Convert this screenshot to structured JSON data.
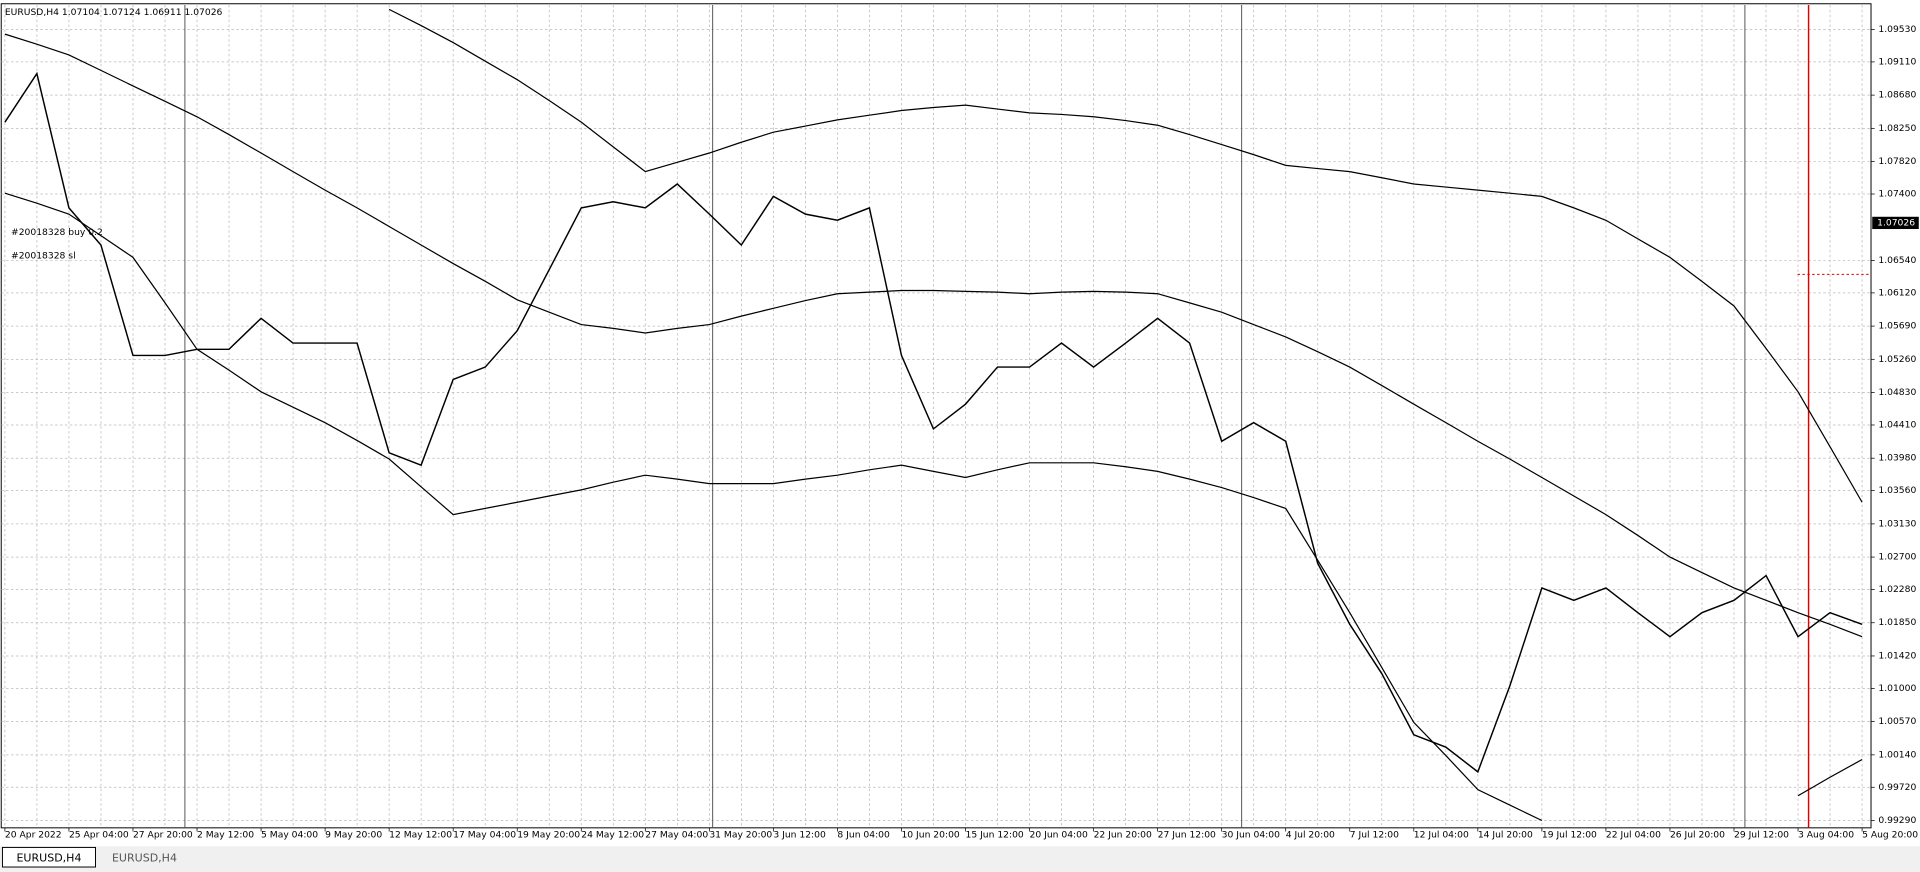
{
  "chart_data": {
    "type": "line",
    "title": "EURUSD,H4 1.07104 1.07124 1.06911 1.07026",
    "annotations": [
      "#20018328 buy 0.2",
      "#20018328 sl"
    ],
    "categories": [
      "20 Apr 2022",
      null,
      "25 Apr 04:00",
      null,
      "27 Apr 20:00",
      null,
      "2 May 12:00",
      null,
      "5 May 04:00",
      null,
      "9 May 20:00",
      null,
      "12 May 12:00",
      null,
      "17 May 04:00",
      null,
      "19 May 20:00",
      null,
      "24 May 12:00",
      null,
      "27 May 04:00",
      null,
      "31 May 20:00",
      null,
      "3 Jun 12:00",
      null,
      "8 Jun 04:00",
      null,
      "10 Jun 20:00",
      null,
      "15 Jun 12:00",
      null,
      "20 Jun 04:00",
      null,
      "22 Jun 20:00",
      null,
      "27 Jun 12:00",
      null,
      "30 Jun 04:00",
      null,
      "4 Jul 20:00",
      null,
      "7 Jul 12:00",
      null,
      "12 Jul 04:00",
      null,
      "14 Jul 20:00",
      null,
      "19 Jul 12:00",
      null,
      "22 Jul 04:00",
      null,
      "26 Jul 20:00",
      null,
      "29 Jul 12:00",
      null,
      "3 Aug 04:00",
      null,
      "5 Aug 20:00"
    ],
    "series": [
      {
        "color": "#000000",
        "values": [
          1.0833,
          1.0896,
          1.0722,
          1.0674,
          1.0531,
          1.0531,
          1.0539,
          1.0539,
          1.0579,
          1.0547,
          1.0547,
          1.0547,
          1.0405,
          1.0389,
          1.05,
          1.0516,
          1.0563,
          1.0642,
          1.0722,
          1.073,
          1.0722,
          1.0753,
          1.0714,
          1.0674,
          1.0737,
          1.0714,
          1.0706,
          1.0722,
          1.0531,
          1.0436,
          1.0468,
          1.0516,
          1.0516,
          1.0547,
          1.0516,
          1.0547,
          1.0579,
          1.0547,
          1.042,
          1.0444,
          1.042,
          1.0262,
          1.0183,
          1.0119,
          1.004,
          1.0024,
          0.9992,
          1.0103,
          1.023,
          1.0214,
          1.023,
          1.0198,
          1.0167,
          1.0198,
          1.0214,
          1.0246,
          1.0167,
          1.0198,
          1.0183
        ]
      },
      {
        "color": "#000000",
        "values": [
          null,
          null,
          null,
          null,
          null,
          null,
          null,
          null,
          null,
          null,
          null,
          null,
          1.0979,
          1.0958,
          1.0936,
          1.0912,
          1.0888,
          1.0861,
          1.0833,
          1.0801,
          1.0769,
          1.0781,
          1.0793,
          1.0807,
          1.082,
          1.0828,
          1.0836,
          1.0842,
          1.0848,
          1.0852,
          1.0855,
          1.085,
          1.0845,
          1.0843,
          1.084,
          1.0835,
          1.0829,
          1.0817,
          1.0804,
          1.0791,
          1.0777,
          1.0773,
          1.0769,
          1.0761,
          1.0753,
          1.0749,
          1.0745,
          1.0741,
          1.0737,
          1.0722,
          1.0706,
          1.0682,
          1.0658,
          1.0627,
          1.0595,
          1.054,
          1.0484,
          1.0413,
          1.0341
        ]
      },
      {
        "color": "#000000",
        "values": [
          1.0947,
          1.0934,
          1.092,
          1.09,
          1.088,
          1.086,
          1.084,
          1.0817,
          1.0793,
          1.0769,
          1.0745,
          1.0722,
          1.0698,
          1.0674,
          1.065,
          1.0627,
          1.0603,
          1.0587,
          1.0571,
          1.0566,
          1.056,
          1.0566,
          1.0571,
          1.0582,
          1.0592,
          1.0602,
          1.0611,
          1.0613,
          1.0615,
          1.0615,
          1.0614,
          1.0613,
          1.0611,
          1.0613,
          1.0614,
          1.0613,
          1.0611,
          1.0599,
          1.0587,
          1.0571,
          1.0555,
          1.0536,
          1.0516,
          1.0492,
          1.0468,
          1.0444,
          1.042,
          1.0397,
          1.0373,
          1.0349,
          1.0325,
          1.0298,
          1.027,
          1.025,
          1.023,
          1.0214,
          1.0198,
          1.0183,
          1.0167
        ]
      },
      {
        "color": "#000000",
        "values": [
          1.0741,
          1.0728,
          1.0714,
          1.0686,
          1.0658,
          1.0599,
          1.0539,
          1.0512,
          1.0484,
          1.0464,
          1.0444,
          1.0421,
          1.0397,
          1.0361,
          1.0325,
          1.0333,
          1.0341,
          1.0349,
          1.0357,
          1.0367,
          1.0376,
          1.0371,
          1.0365,
          1.0365,
          1.0365,
          1.0371,
          1.0376,
          1.0383,
          1.0389,
          1.0381,
          1.0373,
          1.0383,
          1.0392,
          1.0392,
          1.0392,
          1.0387,
          1.0381,
          1.0371,
          1.036,
          1.0347,
          1.0333,
          1.0266,
          1.0198,
          1.0127,
          1.0056,
          1.0013,
          0.9969,
          0.9949,
          0.9929,
          null,
          null,
          null,
          null,
          null,
          null,
          null,
          0.9961,
          0.9985,
          1.0008
        ]
      }
    ],
    "ylim": [
      0.99195,
      1.09847
    ],
    "yticks": [
      {
        "value": 1.0953,
        "label": "1.09530"
      },
      {
        "value": 1.0911,
        "label": "1.09110"
      },
      {
        "value": 1.0868,
        "label": "1.08680"
      },
      {
        "value": 1.0825,
        "label": "1.08250"
      },
      {
        "value": 1.0782,
        "label": "1.07820"
      },
      {
        "value": 1.074,
        "label": "1.07400"
      },
      {
        "value": 1.0654,
        "label": "1.06540"
      },
      {
        "value": 1.0612,
        "label": "1.06120"
      },
      {
        "value": 1.0569,
        "label": "1.05690"
      },
      {
        "value": 1.0526,
        "label": "1.05260"
      },
      {
        "value": 1.0483,
        "label": "1.04830"
      },
      {
        "value": 1.0441,
        "label": "1.04410"
      },
      {
        "value": 1.0398,
        "label": "1.03980"
      },
      {
        "value": 1.0356,
        "label": "1.03560"
      },
      {
        "value": 1.0313,
        "label": "1.03130"
      },
      {
        "value": 1.027,
        "label": "1.02700"
      },
      {
        "value": 1.0228,
        "label": "1.02280"
      },
      {
        "value": 1.0185,
        "label": "1.01850"
      },
      {
        "value": 1.0142,
        "label": "1.01420"
      },
      {
        "value": 1.01,
        "label": "1.01000"
      },
      {
        "value": 1.0057,
        "label": "1.00570"
      },
      {
        "value": 1.0014,
        "label": "1.00140"
      },
      {
        "value": 0.9972,
        "label": "0.99720"
      },
      {
        "value": 0.9929,
        "label": "0.99290"
      }
    ],
    "current_price": {
      "value": 1.07026,
      "label": "1.07026"
    },
    "grid": true
  },
  "tabs": [
    "EURUSD,H4",
    "EURUSD,H4"
  ]
}
